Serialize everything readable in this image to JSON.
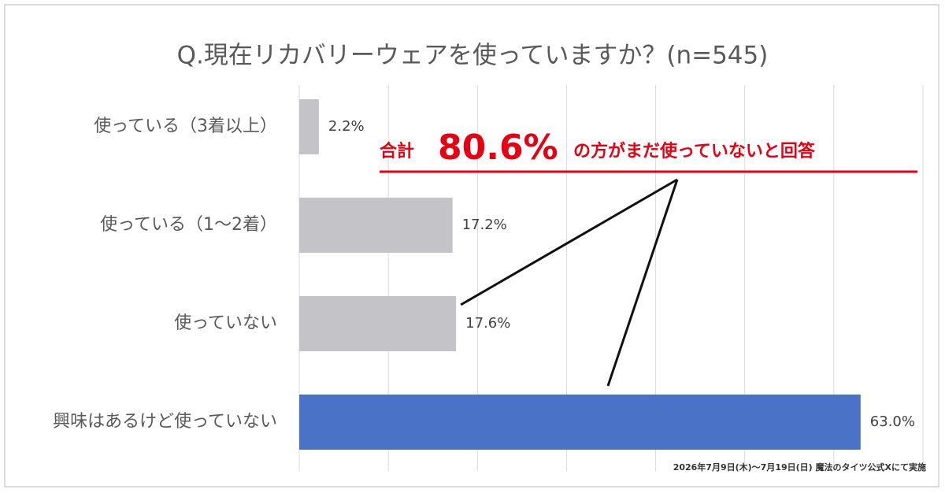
{
  "chart_data": {
    "type": "hbar",
    "title": "Q.現在リカバリーウェアを使っていますか？(n=545)",
    "categories": [
      "使っている（3着以上）",
      "使っている（1～2着）",
      "使っていない",
      "興味はあるけど使っていない"
    ],
    "values": [
      2.2,
      17.2,
      17.6,
      63.0
    ],
    "value_labels": [
      "2.2%",
      "17.2%",
      "17.6%",
      "63.0%"
    ],
    "colors": [
      "#c4c3c8",
      "#c4c3c8",
      "#c4c3c8",
      "#4a72c6"
    ],
    "xlim": [
      0,
      70
    ],
    "xticks": [
      0,
      10,
      20,
      30,
      40,
      50,
      60,
      70
    ],
    "grid": true,
    "annotation": {
      "prefix": "合計",
      "highlight": "80.6%",
      "suffix": "の方がまだ使っていないと回答",
      "color": "#e60012"
    },
    "footnote": "2026年7月9日(木)～7月19日(日) 魔法のタイツ公式Xにて実施"
  }
}
